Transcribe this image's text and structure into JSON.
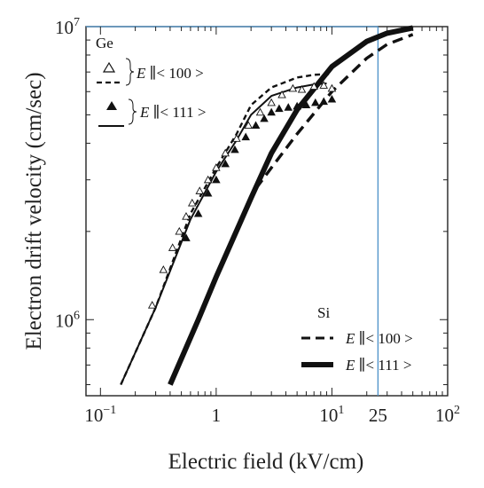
{
  "chart_data": {
    "type": "line",
    "xlabel": "Electric field (kV/cm)",
    "ylabel": "Electron drift velocity (cm/sec)",
    "xscale": "log",
    "yscale": "log",
    "xlim": [
      0.075,
      100
    ],
    "ylim": [
      550000,
      10000000
    ],
    "x_ticks": [
      {
        "value": 0.1,
        "base": "10",
        "exp": "−1"
      },
      {
        "value": 1,
        "base": "1",
        "exp": ""
      },
      {
        "value": 10,
        "base": "10",
        "exp": "1"
      },
      {
        "value": 100,
        "base": "10",
        "exp": "2"
      }
    ],
    "y_ticks": [
      {
        "value": 1000000,
        "base": "10",
        "exp": "6"
      },
      {
        "value": 10000000,
        "base": "10",
        "exp": "7"
      }
    ],
    "extra_x_label": {
      "value": 25,
      "text": "25"
    },
    "reference_lines": {
      "x": 25,
      "y": 10000000,
      "color": "#4a90c8"
    },
    "legend_ge": {
      "title": "Ge",
      "row1": {
        "vec": "E",
        "dir": "< 100 >"
      },
      "row2": {
        "vec": "E",
        "dir": "< 111 >"
      }
    },
    "legend_si": {
      "title": "Si",
      "row1": {
        "vec": "E",
        "dir": "< 100 >"
      },
      "row2": {
        "vec": "E",
        "dir": "< 111 >"
      }
    },
    "series": [
      {
        "material": "Ge",
        "orientation": "100",
        "style": "dashed-thin",
        "x": [
          0.15,
          0.3,
          0.6,
          1,
          1.5,
          2,
          3,
          5,
          7,
          10
        ],
        "y": [
          600000,
          1100000,
          2300000,
          3300000,
          4300000,
          5400000,
          6200000,
          6700000,
          6850000,
          6900000
        ]
      },
      {
        "material": "Ge",
        "orientation": "111",
        "style": "solid-thin",
        "x": [
          0.15,
          0.3,
          0.6,
          1,
          1.5,
          2,
          3,
          5,
          7,
          9
        ],
        "y": [
          600000,
          1100000,
          2200000,
          3200000,
          4100000,
          5000000,
          5800000,
          6200000,
          6350000,
          6400000
        ]
      },
      {
        "material": "Si",
        "orientation": "100",
        "style": "dashed-thick",
        "x": [
          2.2,
          3,
          5,
          10,
          20,
          30,
          50
        ],
        "y": [
          2800000,
          3300000,
          4300000,
          6000000,
          7800000,
          8700000,
          9400000
        ]
      },
      {
        "material": "Si",
        "orientation": "111",
        "style": "solid-thick",
        "x": [
          0.4,
          0.7,
          1,
          2,
          3,
          5,
          10,
          20,
          30,
          50
        ],
        "y": [
          600000,
          1000000,
          1400000,
          2600000,
          3700000,
          5200000,
          7300000,
          8900000,
          9500000,
          9900000
        ]
      }
    ],
    "markers": [
      {
        "label": "Ge <100> data",
        "shape": "open-triangle",
        "x": [
          0.28,
          0.35,
          0.42,
          0.48,
          0.55,
          0.62,
          0.72,
          0.85,
          1.0,
          1.2,
          1.5,
          1.9,
          2.4,
          3.0,
          3.7,
          4.6,
          5.5,
          7.0,
          8.5,
          10
        ],
        "y": [
          1120000,
          1480000,
          1760000,
          2000000,
          2250000,
          2500000,
          2750000,
          3000000,
          3300000,
          3700000,
          4150000,
          4600000,
          5100000,
          5500000,
          5850000,
          6150000,
          6100000,
          6250000,
          6300000,
          6150000
        ]
      },
      {
        "label": "Ge <111> data",
        "shape": "filled-triangle",
        "x": [
          0.55,
          0.7,
          0.85,
          1.0,
          1.2,
          1.45,
          1.8,
          2.2,
          2.6,
          3.0,
          3.5,
          4.2,
          5.0,
          6.0,
          7.2,
          8.5,
          10
        ],
        "y": [
          1900000,
          2300000,
          2700000,
          3000000,
          3400000,
          3800000,
          4200000,
          4600000,
          4850000,
          5100000,
          5250000,
          5300000,
          5350000,
          5400000,
          5500000,
          5550000,
          5650000
        ]
      }
    ]
  }
}
